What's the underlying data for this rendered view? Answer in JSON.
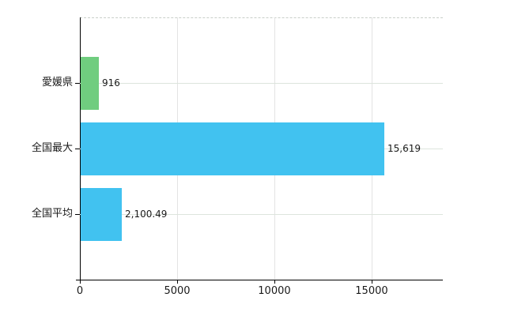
{
  "chart_data": {
    "type": "bar",
    "orientation": "horizontal",
    "title": "",
    "xlabel": "",
    "ylabel": "",
    "categories": [
      "愛媛県",
      "全国最大",
      "全国平均"
    ],
    "values": [
      916,
      15619,
      2100.49
    ],
    "value_labels": [
      "916",
      "15,619",
      "2,100.49"
    ],
    "bar_colors": [
      "#70cd7f",
      "#41c2f0",
      "#41c2f0"
    ],
    "x_ticks": [
      {
        "value": 0,
        "label": "0"
      },
      {
        "value": 5000,
        "label": "5000"
      },
      {
        "value": 10000,
        "label": "10000"
      },
      {
        "value": 15000,
        "label": "15000"
      }
    ],
    "xlim": [
      0,
      18660
    ],
    "grid": true,
    "legend": false,
    "colors": {
      "axis": "#000000",
      "gridline_h": "#dde4dd",
      "gridline_v": "#e3e3e3",
      "top_border": "#c9cfc9",
      "text": "#1a1a1a",
      "background": "#ffffff"
    }
  },
  "layout_labels": {
    "chart_description": "horizontal bar chart comparing 愛媛県 to national max and national average"
  }
}
